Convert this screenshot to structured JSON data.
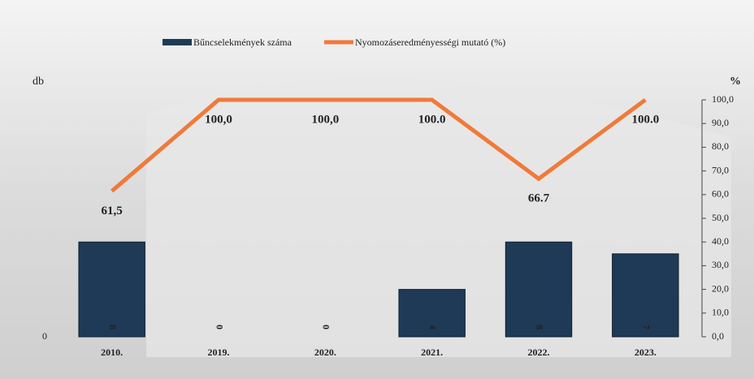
{
  "chart_data": {
    "type": "bar-line",
    "categories": [
      "2010.",
      "2019.",
      "2020.",
      "2021.",
      "2022.",
      "2023."
    ],
    "y_label": "db",
    "y2_label": "%",
    "ylim": [
      0,
      20
    ],
    "yticks": [
      0
    ],
    "y2lim": [
      0,
      100
    ],
    "y2ticks": [
      {
        "value": 0,
        "label": "0,0"
      },
      {
        "value": 10,
        "label": "10,0"
      },
      {
        "value": 20,
        "label": "20,0"
      },
      {
        "value": 30,
        "label": "30,0"
      },
      {
        "value": 40,
        "label": "40,0"
      },
      {
        "value": 50,
        "label": "50,0"
      },
      {
        "value": 60,
        "label": "60,0"
      },
      {
        "value": 70,
        "label": "70,0"
      },
      {
        "value": 80,
        "label": "80,0"
      },
      {
        "value": 90,
        "label": "90,0"
      },
      {
        "value": 100,
        "label": "100,0"
      }
    ],
    "legend": "top",
    "series": [
      {
        "name": "Bűncselekmények száma",
        "type": "bar",
        "color": "#1f3a56",
        "values": [
          8,
          0,
          0,
          4,
          8,
          7
        ]
      },
      {
        "name": "Nyomozáseredményességi mutató (%)",
        "type": "line",
        "axis": "y2",
        "color": "#f07a3a",
        "values": [
          61.5,
          100,
          100,
          100,
          66.7,
          100
        ],
        "value_labels": [
          "61,5",
          "100,0",
          "100,0",
          "100.0",
          "66.7",
          "100.0"
        ]
      }
    ]
  }
}
